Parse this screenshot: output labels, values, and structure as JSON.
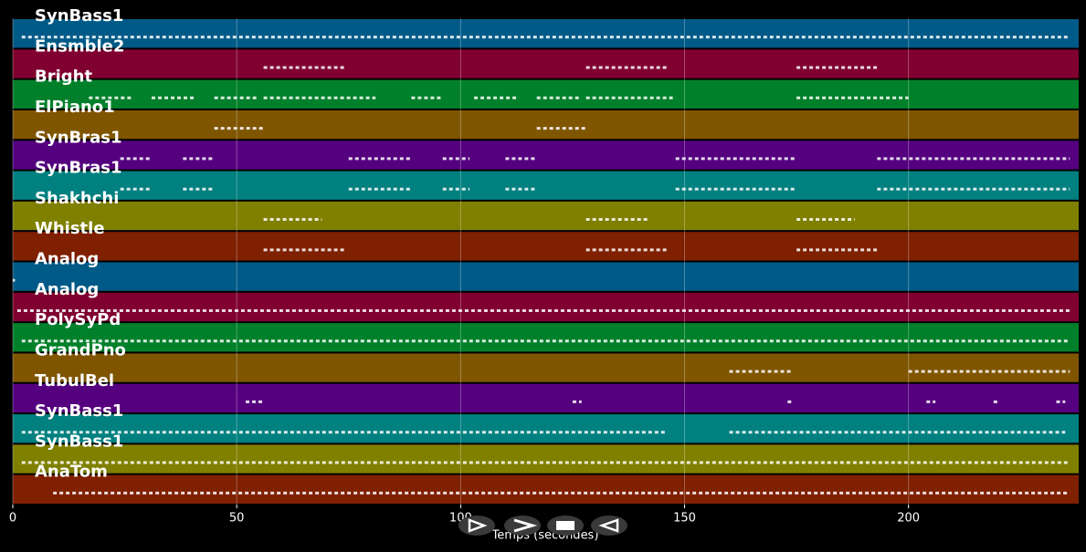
{
  "chart_data": {
    "type": "piano-roll",
    "x_label": "Temps (secondes)",
    "xlim": [
      0,
      238
    ],
    "xticks": [
      0,
      50,
      100,
      150,
      200
    ],
    "grid": true,
    "tracks": [
      {
        "name": "SynBass1",
        "color": "#005a87",
        "segments": [
          [
            2,
            236
          ]
        ]
      },
      {
        "name": "Ensmble2",
        "color": "#800030",
        "segments": [
          [
            56,
            74
          ],
          [
            128,
            146
          ],
          [
            175,
            193
          ]
        ]
      },
      {
        "name": "Bright",
        "color": "#00802a",
        "segments": [
          [
            17,
            27
          ],
          [
            31,
            41
          ],
          [
            45,
            55
          ],
          [
            56,
            81
          ],
          [
            89,
            96
          ],
          [
            103,
            113
          ],
          [
            117,
            127
          ],
          [
            128,
            148
          ],
          [
            175,
            200
          ]
        ]
      },
      {
        "name": "ElPiano1",
        "color": "#7f5500",
        "segments": [
          [
            45,
            56
          ],
          [
            117,
            128
          ]
        ]
      },
      {
        "name": "SynBras1",
        "color": "#55007f",
        "segments": [
          [
            24,
            31
          ],
          [
            38,
            45
          ],
          [
            75,
            89
          ],
          [
            96,
            102
          ],
          [
            110,
            117
          ],
          [
            148,
            175
          ],
          [
            193,
            236
          ]
        ]
      },
      {
        "name": "SynBras1",
        "color": "#00807f",
        "segments": [
          [
            24,
            31
          ],
          [
            38,
            45
          ],
          [
            75,
            89
          ],
          [
            96,
            102
          ],
          [
            110,
            117
          ],
          [
            148,
            175
          ],
          [
            193,
            236
          ]
        ]
      },
      {
        "name": "Shakhchi",
        "color": "#7f7f00",
        "segments": [
          [
            56,
            69
          ],
          [
            128,
            142
          ],
          [
            175,
            188
          ]
        ]
      },
      {
        "name": "Whistle",
        "color": "#7f2000",
        "segments": [
          [
            56,
            74
          ],
          [
            128,
            146
          ],
          [
            175,
            193
          ]
        ]
      },
      {
        "name": "Analog",
        "color": "#005a87",
        "segments": [
          [
            0,
            0.5
          ]
        ]
      },
      {
        "name": "Analog",
        "color": "#800030",
        "segments": [
          [
            1,
            236
          ]
        ]
      },
      {
        "name": "PolySyPd",
        "color": "#00802a",
        "segments": [
          [
            2,
            236
          ]
        ]
      },
      {
        "name": "GrandPno",
        "color": "#7f5500",
        "segments": [
          [
            160,
            174
          ],
          [
            200,
            236
          ]
        ]
      },
      {
        "name": "TubulBel",
        "color": "#55007f",
        "segments": [
          [
            52,
            56
          ],
          [
            125,
            127
          ],
          [
            173,
            174
          ],
          [
            204,
            206
          ],
          [
            219,
            220
          ],
          [
            233,
            235
          ]
        ]
      },
      {
        "name": "SynBass1",
        "color": "#00807f",
        "segments": [
          [
            2,
            146
          ],
          [
            160,
            235
          ]
        ]
      },
      {
        "name": "SynBass1",
        "color": "#7f7f00",
        "segments": [
          [
            2,
            236
          ]
        ]
      },
      {
        "name": "AnaTom",
        "color": "#7f2000",
        "segments": [
          [
            9,
            236
          ]
        ]
      }
    ]
  }
}
